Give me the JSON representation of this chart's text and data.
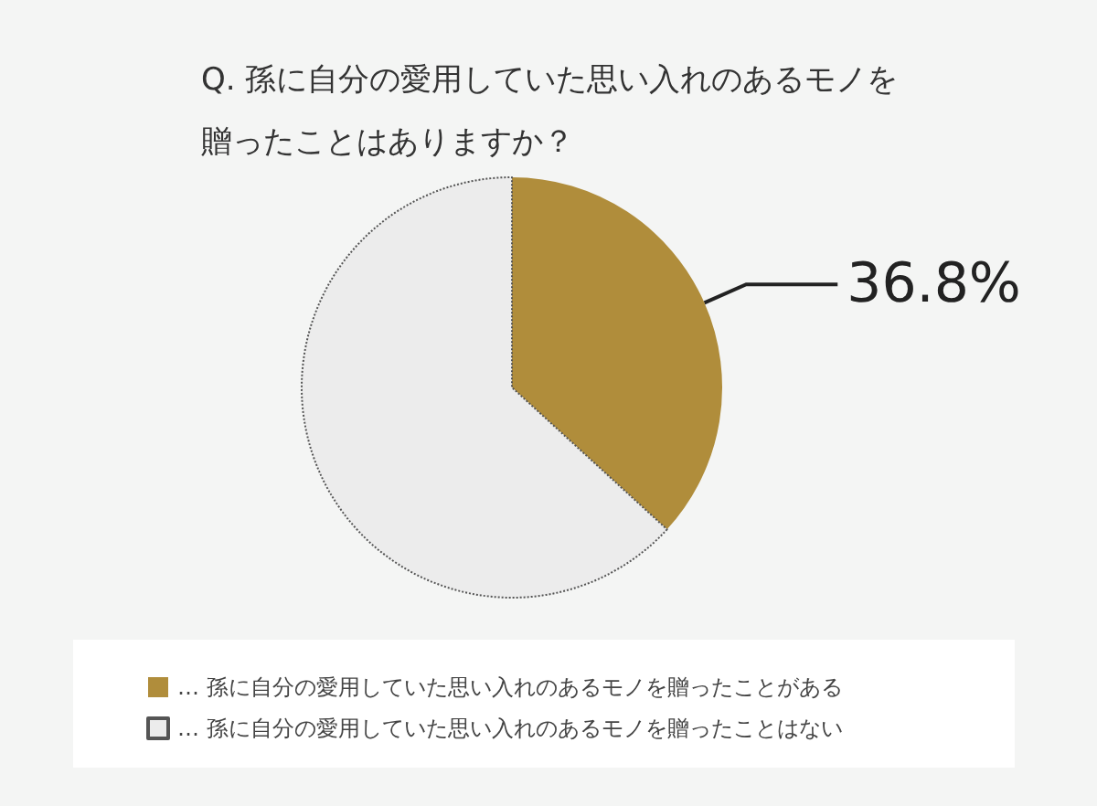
{
  "chart_data": {
    "type": "pie",
    "title": "Q. 孫に自分の愛用していた思い入れのあるモノを贈ったことはありますか？",
    "categories": [
      "… 孫に自分の愛用していた思い入れのあるモノを贈ったことがある",
      "… 孫に自分の愛用していた思い入れのあるモノを贈ったことはない"
    ],
    "values": [
      36.8,
      63.2
    ],
    "colors": [
      "#b08d3b",
      "#ececec"
    ],
    "value_labels": [
      "36.8%",
      null
    ],
    "legend": "bottom"
  }
}
